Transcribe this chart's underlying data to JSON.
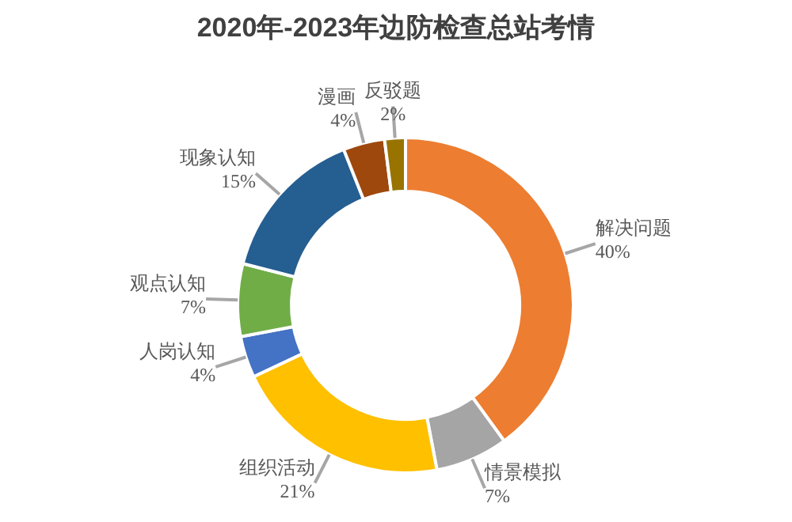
{
  "chart_data": {
    "type": "donut",
    "title": "2020年-2023年边防检查总站考情",
    "categories": [
      "解决问题",
      "情景模拟",
      "组织活动",
      "人岗认知",
      "观点认知",
      "现象认知",
      "漫画",
      "反驳题"
    ],
    "values": [
      40,
      7,
      21,
      4,
      7,
      15,
      4,
      2
    ],
    "value_labels": [
      "40%",
      "7%",
      "21%",
      "4%",
      "7%",
      "15%",
      "4%",
      "2%"
    ],
    "colors": [
      "#ed7d31",
      "#a5a5a5",
      "#ffc000",
      "#4472c4",
      "#70ad47",
      "#255e91",
      "#9e480e",
      "#997300"
    ],
    "legend": false
  }
}
